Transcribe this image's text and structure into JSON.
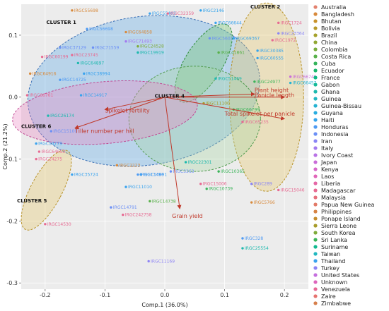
{
  "chart_data": {
    "type": "scatter",
    "xlabel": "Comp.1 (36.0%)",
    "ylabel": "Comp.2 (21.2%)",
    "xlim": [
      -0.24,
      0.24
    ],
    "ylim": [
      -0.31,
      0.15
    ],
    "xticks": [
      -0.2,
      -0.1,
      0.0,
      0.1,
      0.2
    ],
    "xtick_labels": [
      "-0.2",
      "-0.1",
      "0.0",
      "0.1",
      "0.2"
    ],
    "yticks": [
      -0.3,
      -0.2,
      -0.1,
      0.0,
      0.1
    ],
    "ytick_labels": [
      "-0.3",
      "-0.2",
      "-0.1",
      "0.0",
      "0.1"
    ],
    "grid": true,
    "legend_position": "right",
    "countries": [
      {
        "name": "Australia",
        "color": "#e3826f"
      },
      {
        "name": "Bangladesh",
        "color": "#d88a3c"
      },
      {
        "name": "Bhutan",
        "color": "#c9932b"
      },
      {
        "name": "Bolivia",
        "color": "#b89a2a"
      },
      {
        "name": "Brazil",
        "color": "#a6a12b"
      },
      {
        "name": "China",
        "color": "#91a733"
      },
      {
        "name": "Colombia",
        "color": "#78ad3d"
      },
      {
        "name": "Costa Rica",
        "color": "#58b14a"
      },
      {
        "name": "Cuba",
        "color": "#35b45c"
      },
      {
        "name": "Ecuador",
        "color": "#1bb76f"
      },
      {
        "name": "France",
        "color": "#0eb985"
      },
      {
        "name": "Gabon",
        "color": "#15ba9a"
      },
      {
        "name": "Ghana",
        "color": "#1db9ae"
      },
      {
        "name": "Guinea",
        "color": "#23b7c1"
      },
      {
        "name": "Guinea-Bissau",
        "color": "#26b3d2"
      },
      {
        "name": "Guyana",
        "color": "#2aade0"
      },
      {
        "name": "Haiti",
        "color": "#36a5ec"
      },
      {
        "name": "Honduras",
        "color": "#4f9bf3"
      },
      {
        "name": "Indonesia",
        "color": "#6c90f6"
      },
      {
        "name": "Iran",
        "color": "#8a85f5"
      },
      {
        "name": "Italy",
        "color": "#a47bef"
      },
      {
        "name": "Ivory Coast",
        "color": "#b973e6"
      },
      {
        "name": "Japan",
        "color": "#ca6dd9"
      },
      {
        "name": "Kenya",
        "color": "#d768ca"
      },
      {
        "name": "Laos",
        "color": "#e066b9"
      },
      {
        "name": "Liberia",
        "color": "#e567a6"
      },
      {
        "name": "Madagascar",
        "color": "#e76a92"
      },
      {
        "name": "Malaysia",
        "color": "#e6707d"
      },
      {
        "name": "Papua New Guinea",
        "color": "#e27a68"
      },
      {
        "name": "Philippines",
        "color": "#d78445"
      },
      {
        "name": "Ponape Island",
        "color": "#c68d2d"
      },
      {
        "name": "Sierra Leone",
        "color": "#a89c2a"
      },
      {
        "name": "South Korea",
        "color": "#7fab3b"
      },
      {
        "name": "Sri Lanka",
        "color": "#3bb459"
      },
      {
        "name": "Suriname",
        "color": "#12ba90"
      },
      {
        "name": "Taiwan",
        "color": "#22b8c0"
      },
      {
        "name": "Thailand",
        "color": "#3aa3ee"
      },
      {
        "name": "Turkey",
        "color": "#8e84f5"
      },
      {
        "name": "United States",
        "color": "#c56fde"
      },
      {
        "name": "Unknown",
        "color": "#de66bd"
      },
      {
        "name": "Venezuela",
        "color": "#e76996"
      },
      {
        "name": "Zaire",
        "color": "#e6736f"
      },
      {
        "name": "Zimbabwe",
        "color": "#d67f4c"
      }
    ],
    "clusters": [
      {
        "name": "CLUSTER 1",
        "label_x": -0.198,
        "label_y": 0.118,
        "fill": "#5da9e9",
        "stroke": "#3a6fb5",
        "cx": -0.035,
        "cy": 0.01,
        "rx": 0.195,
        "ry": 0.12,
        "rot": -8
      },
      {
        "name": "CLUSTER 2",
        "label_x": 0.143,
        "label_y": 0.143,
        "fill": "#e8c96b",
        "stroke": "#b8932b",
        "cx": 0.17,
        "cy": 0.0,
        "rx": 0.062,
        "ry": 0.152,
        "rot": 0
      },
      {
        "name": "CLUSTER 3",
        "label_x": 0.012,
        "label_y": 0.161,
        "fill": "#6cc36a",
        "stroke": "#2e8b39",
        "cx": 0.065,
        "cy": 0.055,
        "rx": 0.075,
        "ry": 0.03,
        "rot": -58
      },
      {
        "name": "CLUSTER 4",
        "label_x": -0.017,
        "label_y": -0.001,
        "fill": "#a8d8a6",
        "stroke": "#4f9a4d",
        "cx": 0.05,
        "cy": -0.035,
        "rx": 0.11,
        "ry": 0.085,
        "rot": 0
      },
      {
        "name": "CLUSTER 5",
        "label_x": -0.247,
        "label_y": -0.17,
        "fill": "#e8c96b",
        "stroke": "#b8932b",
        "cx": -0.198,
        "cy": -0.15,
        "rx": 0.026,
        "ry": 0.072,
        "rot": 28
      },
      {
        "name": "CLUSTER 6",
        "label_x": -0.24,
        "label_y": -0.05,
        "fill": "#ec86c4",
        "stroke": "#c04b94",
        "cx": -0.1,
        "cy": -0.025,
        "rx": 0.155,
        "ry": 0.05,
        "rot": -5
      }
    ],
    "vectors": [
      {
        "name": "Panicle length",
        "x": 0.2,
        "y": 0.0,
        "label_x": 0.15,
        "label_y": 0.0
      },
      {
        "name": "Plant height",
        "x": 0.15,
        "y": 0.005,
        "label_x": 0.15,
        "label_y": 0.008
      },
      {
        "name": "Total spikelet per panicle",
        "x": 0.2,
        "y": -0.035,
        "label_x": 0.1,
        "label_y": -0.03
      },
      {
        "name": "Spikelet fertility",
        "x": -0.1,
        "y": -0.02,
        "label_x": -0.1,
        "label_y": -0.025
      },
      {
        "name": "Tiller number per hill",
        "x": -0.15,
        "y": -0.05,
        "label_x": -0.15,
        "label_y": -0.058
      },
      {
        "name": "Grain yield",
        "x": 0.025,
        "y": -0.18,
        "label_x": 0.012,
        "label_y": -0.195
      }
    ],
    "points": [
      {
        "id": "IRGC55880",
        "x": -0.027,
        "y": 0.16,
        "country": "Bhutan"
      },
      {
        "id": "IRGC55403",
        "x": -0.025,
        "y": 0.135,
        "country": "Thailand"
      },
      {
        "id": "IRGC32359",
        "x": 0.005,
        "y": 0.135,
        "country": "Madagascar"
      },
      {
        "id": "IRGC55698",
        "x": -0.155,
        "y": 0.14,
        "country": "Bangladesh"
      },
      {
        "id": "IRGC56698",
        "x": -0.13,
        "y": 0.11,
        "country": "Honduras"
      },
      {
        "id": "IRGC2146",
        "x": 0.06,
        "y": 0.14,
        "country": "Haiti"
      },
      {
        "id": "IRGC66644",
        "x": 0.085,
        "y": 0.12,
        "country": "Thailand"
      },
      {
        "id": "IRGC1724",
        "x": 0.19,
        "y": 0.12,
        "country": "Madagascar"
      },
      {
        "id": "IRGC23364",
        "x": 0.19,
        "y": 0.103,
        "country": "Iran"
      },
      {
        "id": "IRGC1972",
        "x": 0.18,
        "y": 0.092,
        "country": "Madagascar"
      },
      {
        "id": "IRGC64858",
        "x": -0.065,
        "y": 0.105,
        "country": "Bangladesh"
      },
      {
        "id": "IRGC71493",
        "x": -0.065,
        "y": 0.09,
        "country": "Italy"
      },
      {
        "id": "IRGC56017",
        "x": 0.075,
        "y": 0.095,
        "country": "Indonesia"
      },
      {
        "id": "IRGC69367",
        "x": 0.115,
        "y": 0.095,
        "country": "Haiti"
      },
      {
        "id": "IRGC37129",
        "x": -0.175,
        "y": 0.08,
        "country": "Indonesia"
      },
      {
        "id": "IRGC71559",
        "x": -0.12,
        "y": 0.08,
        "country": "Indonesia"
      },
      {
        "id": "IRGC60199",
        "x": -0.205,
        "y": 0.065,
        "country": "Madagascar"
      },
      {
        "id": "IRGC23745",
        "x": -0.155,
        "y": 0.068,
        "country": "Madagascar"
      },
      {
        "id": "IRGC24528",
        "x": -0.045,
        "y": 0.082,
        "country": "South Korea"
      },
      {
        "id": "IRGC19919",
        "x": -0.045,
        "y": 0.072,
        "country": "Ghana"
      },
      {
        "id": "IRGC41861",
        "x": 0.09,
        "y": 0.072,
        "country": "Costa Rica"
      },
      {
        "id": "IRGC30385",
        "x": 0.155,
        "y": 0.075,
        "country": "Haiti"
      },
      {
        "id": "IRGC60555",
        "x": 0.155,
        "y": 0.063,
        "country": "Haiti"
      },
      {
        "id": "IRGC64897",
        "x": -0.145,
        "y": 0.055,
        "country": "Ghana"
      },
      {
        "id": "IRGC38994",
        "x": -0.135,
        "y": 0.038,
        "country": "Thailand"
      },
      {
        "id": "IRGC64916",
        "x": -0.225,
        "y": 0.038,
        "country": "Bangladesh"
      },
      {
        "id": "IRGC66745",
        "x": 0.21,
        "y": 0.033,
        "country": "Japan"
      },
      {
        "id": "IRGC66457",
        "x": 0.21,
        "y": 0.023,
        "country": "Guinea-Bissau"
      },
      {
        "id": "IRGC14725",
        "x": -0.175,
        "y": 0.028,
        "country": "Honduras"
      },
      {
        "id": "IRGC66761",
        "x": -0.23,
        "y": 0.003,
        "country": "Madagascar"
      },
      {
        "id": "IRGC14917",
        "x": -0.14,
        "y": 0.003,
        "country": "Thailand"
      },
      {
        "id": "IRGC26174",
        "x": -0.195,
        "y": -0.03,
        "country": "Ghana"
      },
      {
        "id": "IRGC51469",
        "x": 0.085,
        "y": 0.03,
        "country": "Ghana"
      },
      {
        "id": "IRGC24977",
        "x": 0.15,
        "y": 0.025,
        "country": "Sri Lanka"
      },
      {
        "id": "IRGC65235",
        "x": 0.13,
        "y": -0.04,
        "country": "Madagascar"
      },
      {
        "id": "IRGC66799",
        "x": 0.115,
        "y": -0.02,
        "country": "Sri Lanka"
      },
      {
        "id": "IRGC11100",
        "x": 0.065,
        "y": -0.01,
        "country": "Sierra Leone"
      },
      {
        "id": "IRGC15100",
        "x": -0.19,
        "y": -0.055,
        "country": "Indonesia"
      },
      {
        "id": "IRGC14779",
        "x": -0.215,
        "y": -0.075,
        "country": "Thailand"
      },
      {
        "id": "IRGC64653",
        "x": -0.21,
        "y": -0.088,
        "country": "Madagascar"
      },
      {
        "id": "IRGC24275",
        "x": -0.215,
        "y": -0.1,
        "country": "Madagascar"
      },
      {
        "id": "IRGC35724",
        "x": -0.155,
        "y": -0.125,
        "country": "Thailand"
      },
      {
        "id": "IRGC2223",
        "x": -0.08,
        "y": -0.11,
        "country": "Bangladesh"
      },
      {
        "id": "IRGC22301",
        "x": 0.035,
        "y": -0.105,
        "country": "Ghana"
      },
      {
        "id": "IRGC10365",
        "x": 0.09,
        "y": -0.12,
        "country": "Sri Lanka"
      },
      {
        "id": "IRGC14691",
        "x": -0.04,
        "y": -0.125,
        "country": "Thailand"
      },
      {
        "id": "IRGC3363",
        "x": 0.01,
        "y": -0.12,
        "country": "Indonesia"
      },
      {
        "id": "IRGC13496",
        "x": -0.045,
        "y": -0.125,
        "country": "Honduras"
      },
      {
        "id": "IRGC11010",
        "x": -0.065,
        "y": -0.145,
        "country": "Thailand"
      },
      {
        "id": "IRGC15006",
        "x": 0.06,
        "y": -0.14,
        "country": "Madagascar"
      },
      {
        "id": "IRGC10739",
        "x": 0.07,
        "y": -0.148,
        "country": "Sri Lanka"
      },
      {
        "id": "IRGC289",
        "x": 0.145,
        "y": -0.14,
        "country": "Iran"
      },
      {
        "id": "IRGC15046",
        "x": 0.19,
        "y": -0.15,
        "country": "Madagascar"
      },
      {
        "id": "IRGC14738",
        "x": -0.025,
        "y": -0.168,
        "country": "Costa Rica"
      },
      {
        "id": "IRGC5766",
        "x": 0.145,
        "y": -0.17,
        "country": "Bangladesh"
      },
      {
        "id": "IRGC14791",
        "x": -0.09,
        "y": -0.178,
        "country": "Indonesia"
      },
      {
        "id": "IRGC242758",
        "x": -0.07,
        "y": -0.19,
        "country": "Madagascar"
      },
      {
        "id": "IRGC14530",
        "x": -0.2,
        "y": -0.205,
        "country": "Madagascar"
      },
      {
        "id": "IRGC328",
        "x": 0.13,
        "y": -0.228,
        "country": "Honduras"
      },
      {
        "id": "IRGC25554",
        "x": 0.13,
        "y": -0.244,
        "country": "Ghana"
      },
      {
        "id": "IRGC11169",
        "x": -0.027,
        "y": -0.265,
        "country": "Turkey"
      }
    ]
  }
}
